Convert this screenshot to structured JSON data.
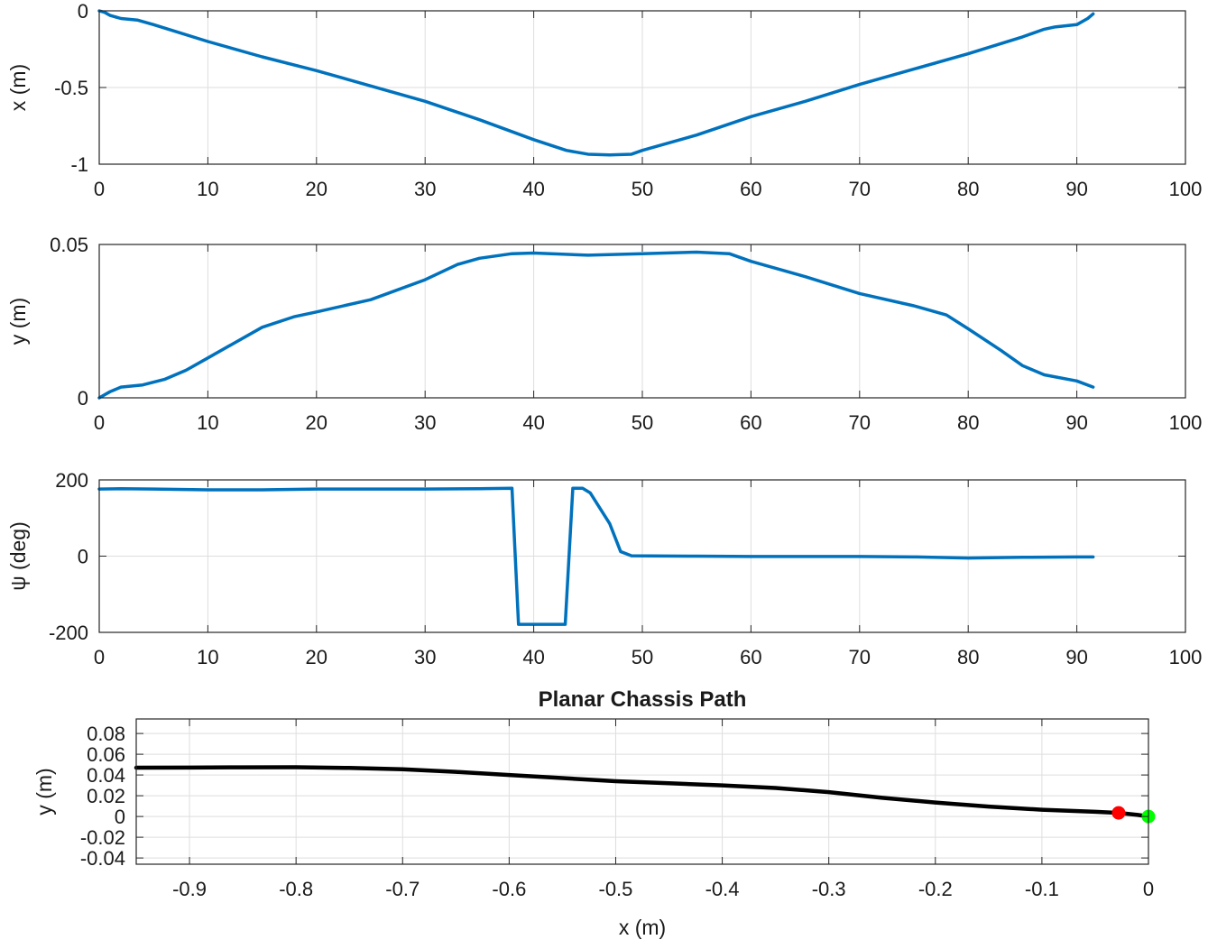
{
  "colors": {
    "series": "#0072BD",
    "path": "#000000",
    "start_marker": "#00FF00",
    "end_marker": "#FF0000",
    "grid": "#dedede",
    "axes": "#262626"
  },
  "chart_data": [
    {
      "id": "x",
      "type": "line",
      "title": "",
      "xlabel": "",
      "ylabel": "x (m)",
      "xlim": [
        0,
        100
      ],
      "ylim": [
        -1,
        0
      ],
      "xticks": [
        0,
        10,
        20,
        30,
        40,
        50,
        60,
        70,
        80,
        90,
        100
      ],
      "yticks": [
        -1,
        -0.5,
        0
      ],
      "xtick_labels": [
        "0",
        "10",
        "20",
        "30",
        "40",
        "50",
        "60",
        "70",
        "80",
        "90",
        "100"
      ],
      "ytick_labels": [
        "-1",
        "-0.5",
        "0"
      ],
      "grid": true,
      "series": [
        {
          "color": "#0072BD",
          "x": [
            0,
            0.5,
            1,
            2,
            3.5,
            5,
            10,
            15,
            20,
            25,
            30,
            35,
            40,
            43,
            45,
            47,
            49,
            50,
            55,
            60,
            65,
            70,
            75,
            80,
            85,
            87,
            88,
            90,
            91,
            91.5
          ],
          "y": [
            0,
            -0.01,
            -0.03,
            -0.05,
            -0.06,
            -0.09,
            -0.2,
            -0.3,
            -0.39,
            -0.49,
            -0.59,
            -0.71,
            -0.84,
            -0.91,
            -0.935,
            -0.94,
            -0.935,
            -0.91,
            -0.81,
            -0.69,
            -0.59,
            -0.48,
            -0.38,
            -0.28,
            -0.17,
            -0.12,
            -0.105,
            -0.09,
            -0.05,
            -0.02
          ]
        }
      ]
    },
    {
      "id": "y",
      "type": "line",
      "title": "",
      "xlabel": "",
      "ylabel": "y (m)",
      "xlim": [
        0,
        100
      ],
      "ylim": [
        0,
        0.05
      ],
      "xticks": [
        0,
        10,
        20,
        30,
        40,
        50,
        60,
        70,
        80,
        90,
        100
      ],
      "yticks": [
        0,
        0.05
      ],
      "xtick_labels": [
        "0",
        "10",
        "20",
        "30",
        "40",
        "50",
        "60",
        "70",
        "80",
        "90",
        "100"
      ],
      "ytick_labels": [
        "0",
        "0.05"
      ],
      "grid": true,
      "series": [
        {
          "color": "#0072BD",
          "x": [
            0,
            1,
            2,
            4,
            6,
            8,
            10,
            12,
            15,
            18,
            20,
            25,
            30,
            33,
            35,
            38,
            40,
            45,
            50,
            55,
            58,
            60,
            65,
            70,
            75,
            78,
            80,
            83,
            85,
            87,
            90,
            91.5
          ],
          "y": [
            0,
            0.002,
            0.0035,
            0.0042,
            0.006,
            0.009,
            0.013,
            0.017,
            0.023,
            0.0265,
            0.028,
            0.032,
            0.0385,
            0.0435,
            0.0455,
            0.047,
            0.0472,
            0.0465,
            0.047,
            0.0475,
            0.047,
            0.0445,
            0.0395,
            0.034,
            0.03,
            0.027,
            0.0225,
            0.0155,
            0.0105,
            0.0075,
            0.0055,
            0.0035
          ]
        }
      ]
    },
    {
      "id": "psi",
      "type": "line",
      "title": "",
      "xlabel": "",
      "ylabel": "ψ (deg)",
      "xlim": [
        0,
        100
      ],
      "ylim": [
        -200,
        200
      ],
      "xticks": [
        0,
        10,
        20,
        30,
        40,
        50,
        60,
        70,
        80,
        90,
        100
      ],
      "yticks": [
        -200,
        0,
        200
      ],
      "xtick_labels": [
        "0",
        "10",
        "20",
        "30",
        "40",
        "50",
        "60",
        "70",
        "80",
        "90",
        "100"
      ],
      "ytick_labels": [
        "-200",
        "0",
        "200"
      ],
      "grid": true,
      "series": [
        {
          "color": "#0072BD",
          "x": [
            0,
            2,
            5,
            10,
            15,
            20,
            25,
            30,
            35,
            38,
            38.6,
            39.5,
            42,
            42.9,
            43.6,
            44.5,
            45.2,
            46,
            47,
            48,
            49,
            55,
            60,
            65,
            70,
            75,
            80,
            85,
            90,
            91.5
          ],
          "y": [
            176,
            177,
            176,
            174,
            174,
            176,
            176,
            176,
            177,
            178,
            -179,
            -179,
            -179,
            -179,
            178,
            178,
            166,
            130,
            85,
            12,
            1,
            0,
            -1,
            -1,
            -1,
            -2,
            -5,
            -3,
            -2,
            -2
          ]
        }
      ]
    },
    {
      "id": "path",
      "type": "line",
      "title": "Planar Chassis Path",
      "xlabel": "x (m)",
      "ylabel": "y (m)",
      "xlim": [
        -0.95,
        0
      ],
      "ylim": [
        -0.046,
        0.094
      ],
      "xticks": [
        -0.9,
        -0.8,
        -0.7,
        -0.6,
        -0.5,
        -0.4,
        -0.3,
        -0.2,
        -0.1,
        0
      ],
      "yticks": [
        -0.04,
        -0.02,
        0,
        0.02,
        0.04,
        0.06,
        0.08
      ],
      "xtick_labels": [
        "-0.9",
        "-0.8",
        "-0.7",
        "-0.6",
        "-0.5",
        "-0.4",
        "-0.3",
        "-0.2",
        "-0.1",
        "0"
      ],
      "ytick_labels": [
        "-0.04",
        "-0.02",
        "0",
        "0.02",
        "0.04",
        "0.06",
        "0.08"
      ],
      "grid": true,
      "series": [
        {
          "color": "#000000",
          "x": [
            -0.95,
            -0.9,
            -0.85,
            -0.8,
            -0.75,
            -0.7,
            -0.65,
            -0.6,
            -0.55,
            -0.5,
            -0.45,
            -0.4,
            -0.35,
            -0.3,
            -0.25,
            -0.2,
            -0.15,
            -0.1,
            -0.05,
            -0.028,
            -0.01,
            0
          ],
          "y": [
            0.047,
            0.0472,
            0.0474,
            0.0475,
            0.0468,
            0.0455,
            0.043,
            0.04,
            0.037,
            0.034,
            0.032,
            0.03,
            0.0275,
            0.0235,
            0.018,
            0.0135,
            0.0095,
            0.0065,
            0.0045,
            0.0035,
            0.0015,
            0
          ]
        }
      ],
      "markers": [
        {
          "x": 0,
          "y": 0,
          "color": "#00FF00"
        },
        {
          "x": -0.028,
          "y": 0.0035,
          "color": "#FF0000"
        }
      ]
    }
  ]
}
